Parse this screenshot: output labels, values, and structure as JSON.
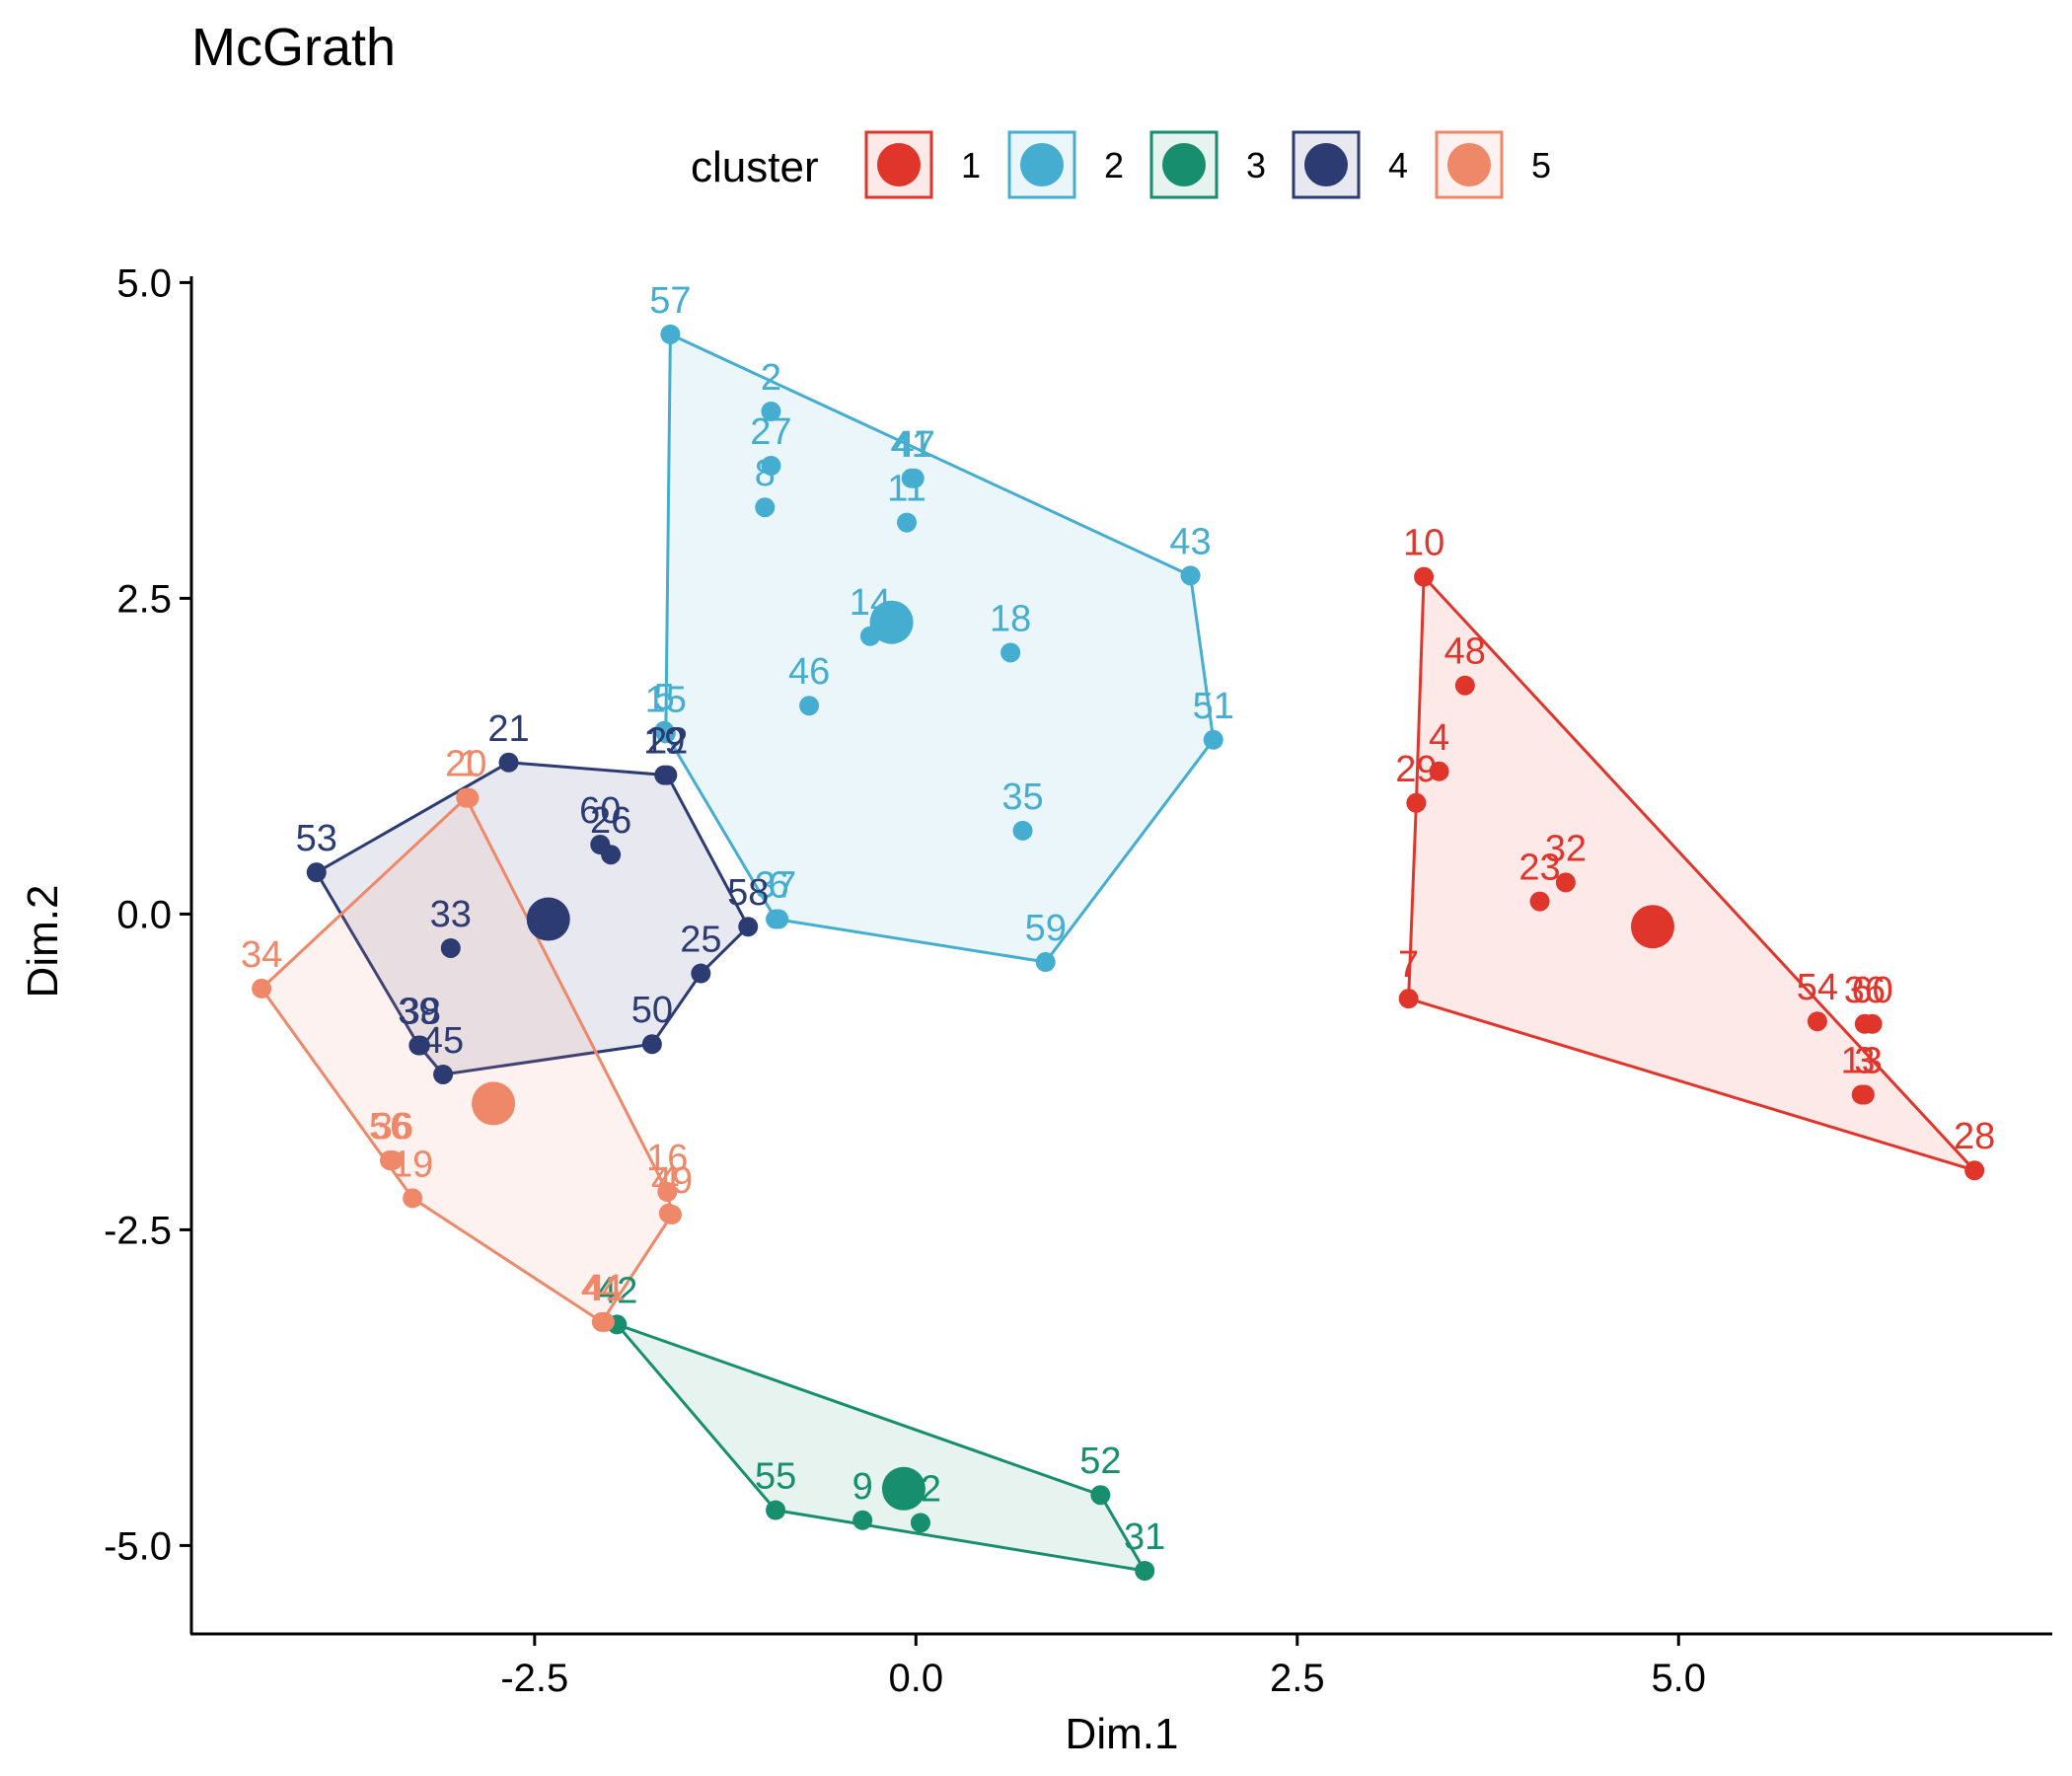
{
  "chart_data": {
    "type": "scatter",
    "title": "McGrath",
    "xlabel": "Dim.1",
    "ylabel": "Dim.2",
    "xlim": [
      -4.75,
      7.45
    ],
    "ylim": [
      -5.7,
      5.05
    ],
    "xticks": [
      -2.5,
      0.0,
      2.5,
      5.0
    ],
    "xtick_labels": [
      "-2.5",
      "0.0",
      "2.5",
      "5.0"
    ],
    "yticks": [
      5.0,
      2.5,
      0.0,
      -2.5,
      -5.0
    ],
    "ytick_labels": [
      "5.0",
      "2.5",
      "0.0",
      "-2.5",
      "-5.0"
    ],
    "grid": false,
    "legend": {
      "title": "cluster",
      "position": "top"
    },
    "series": [
      {
        "name": "1",
        "color": "#E0352B",
        "centroid": [
          4.83,
          -0.1
        ],
        "hull": [
          "10",
          "28",
          "7",
          "29"
        ],
        "points": [
          {
            "label": "10",
            "x": 3.33,
            "y": 2.67
          },
          {
            "label": "48",
            "x": 3.6,
            "y": 1.81
          },
          {
            "label": "4",
            "x": 3.43,
            "y": 1.13
          },
          {
            "label": "29",
            "x": 3.28,
            "y": 0.88
          },
          {
            "label": "23",
            "x": 4.09,
            "y": 0.1
          },
          {
            "label": "32",
            "x": 4.26,
            "y": 0.25
          },
          {
            "label": "7",
            "x": 3.23,
            "y": -0.67
          },
          {
            "label": "54",
            "x": 5.91,
            "y": -0.85
          },
          {
            "label": "36",
            "x": 6.22,
            "y": -0.87
          },
          {
            "label": "60",
            "x": 6.27,
            "y": -0.87
          },
          {
            "label": "13",
            "x": 6.2,
            "y": -1.43
          },
          {
            "label": "3",
            "x": 6.22,
            "y": -1.43
          },
          {
            "label": "28",
            "x": 6.94,
            "y": -2.03
          }
        ]
      },
      {
        "name": "2",
        "color": "#45ADD0",
        "centroid": [
          -0.16,
          2.31
        ],
        "hull": [
          "57",
          "43",
          "51",
          "59",
          "37",
          "15"
        ],
        "points": [
          {
            "label": "57",
            "x": -1.61,
            "y": 4.59
          },
          {
            "label": "2",
            "x": -0.95,
            "y": 3.98
          },
          {
            "label": "27",
            "x": -0.95,
            "y": 3.55
          },
          {
            "label": "8",
            "x": -0.99,
            "y": 3.22
          },
          {
            "label": "41",
            "x": -0.03,
            "y": 3.45
          },
          {
            "label": "47",
            "x": -0.01,
            "y": 3.45
          },
          {
            "label": "11",
            "x": -0.06,
            "y": 3.1
          },
          {
            "label": "43",
            "x": 1.8,
            "y": 2.68
          },
          {
            "label": "14",
            "x": -0.3,
            "y": 2.2
          },
          {
            "label": "18",
            "x": 0.62,
            "y": 2.07
          },
          {
            "label": "46",
            "x": -0.7,
            "y": 1.65
          },
          {
            "label": "5",
            "x": -1.65,
            "y": 1.45
          },
          {
            "label": "15",
            "x": -1.64,
            "y": 1.43
          },
          {
            "label": "51",
            "x": 1.95,
            "y": 1.38
          },
          {
            "label": "35",
            "x": 0.7,
            "y": 0.66
          },
          {
            "label": "37",
            "x": -0.92,
            "y": -0.04
          },
          {
            "label": "6",
            "x": -0.9,
            "y": -0.04
          },
          {
            "label": "59",
            "x": 0.85,
            "y": -0.38
          }
        ]
      },
      {
        "name": "3",
        "color": "#178E6D",
        "centroid": [
          -0.08,
          -4.55
        ],
        "hull": [
          "42",
          "52",
          "31",
          "55"
        ],
        "points": [
          {
            "label": "42",
            "x": -1.96,
            "y": -3.25
          },
          {
            "label": "55",
            "x": -0.92,
            "y": -4.72
          },
          {
            "label": "9",
            "x": -0.35,
            "y": -4.8
          },
          {
            "label": "12",
            "x": 0.03,
            "y": -4.82
          },
          {
            "label": "52",
            "x": 1.21,
            "y": -4.6
          },
          {
            "label": "31",
            "x": 1.5,
            "y": -5.2
          }
        ]
      },
      {
        "name": "4",
        "color": "#2D3B73",
        "centroid": [
          -2.41,
          -0.04
        ],
        "hull": [
          "21",
          "22",
          "58",
          "25",
          "50",
          "45",
          "39",
          "53"
        ],
        "points": [
          {
            "label": "21",
            "x": -2.67,
            "y": 1.2
          },
          {
            "label": "19",
            "x": -1.65,
            "y": 1.1
          },
          {
            "label": "22",
            "x": -1.63,
            "y": 1.1
          },
          {
            "label": "60",
            "x": -2.07,
            "y": 0.55
          },
          {
            "label": "26",
            "x": -2.0,
            "y": 0.47
          },
          {
            "label": "53",
            "x": -3.93,
            "y": 0.33
          },
          {
            "label": "58",
            "x": -1.1,
            "y": -0.1
          },
          {
            "label": "33",
            "x": -3.05,
            "y": -0.27
          },
          {
            "label": "25",
            "x": -1.41,
            "y": -0.47
          },
          {
            "label": "50",
            "x": -1.73,
            "y": -1.03
          },
          {
            "label": "39",
            "x": -3.26,
            "y": -1.04
          },
          {
            "label": "38",
            "x": -3.25,
            "y": -1.04
          },
          {
            "label": "45",
            "x": -3.1,
            "y": -1.27
          }
        ]
      },
      {
        "name": "5",
        "color": "#EE8869",
        "centroid": [
          -2.77,
          -1.5
        ],
        "hull": [
          "20",
          "16",
          "49",
          "44",
          "19",
          "34"
        ],
        "points": [
          {
            "label": "20",
            "x": -2.95,
            "y": 0.92
          },
          {
            "label": "1",
            "x": -2.93,
            "y": 0.92
          },
          {
            "label": "34",
            "x": -4.29,
            "y": -0.59
          },
          {
            "label": "56",
            "x": -3.45,
            "y": -1.95
          },
          {
            "label": "36",
            "x": -3.43,
            "y": -1.95
          },
          {
            "label": "19",
            "x": -3.3,
            "y": -2.25
          },
          {
            "label": "16",
            "x": -1.63,
            "y": -2.2
          },
          {
            "label": "49",
            "x": -1.6,
            "y": -2.38
          },
          {
            "label": "4",
            "x": -1.62,
            "y": -2.37
          },
          {
            "label": "44",
            "x": -2.06,
            "y": -3.23
          },
          {
            "label": "41",
            "x": -2.04,
            "y": -3.23
          }
        ]
      }
    ]
  }
}
